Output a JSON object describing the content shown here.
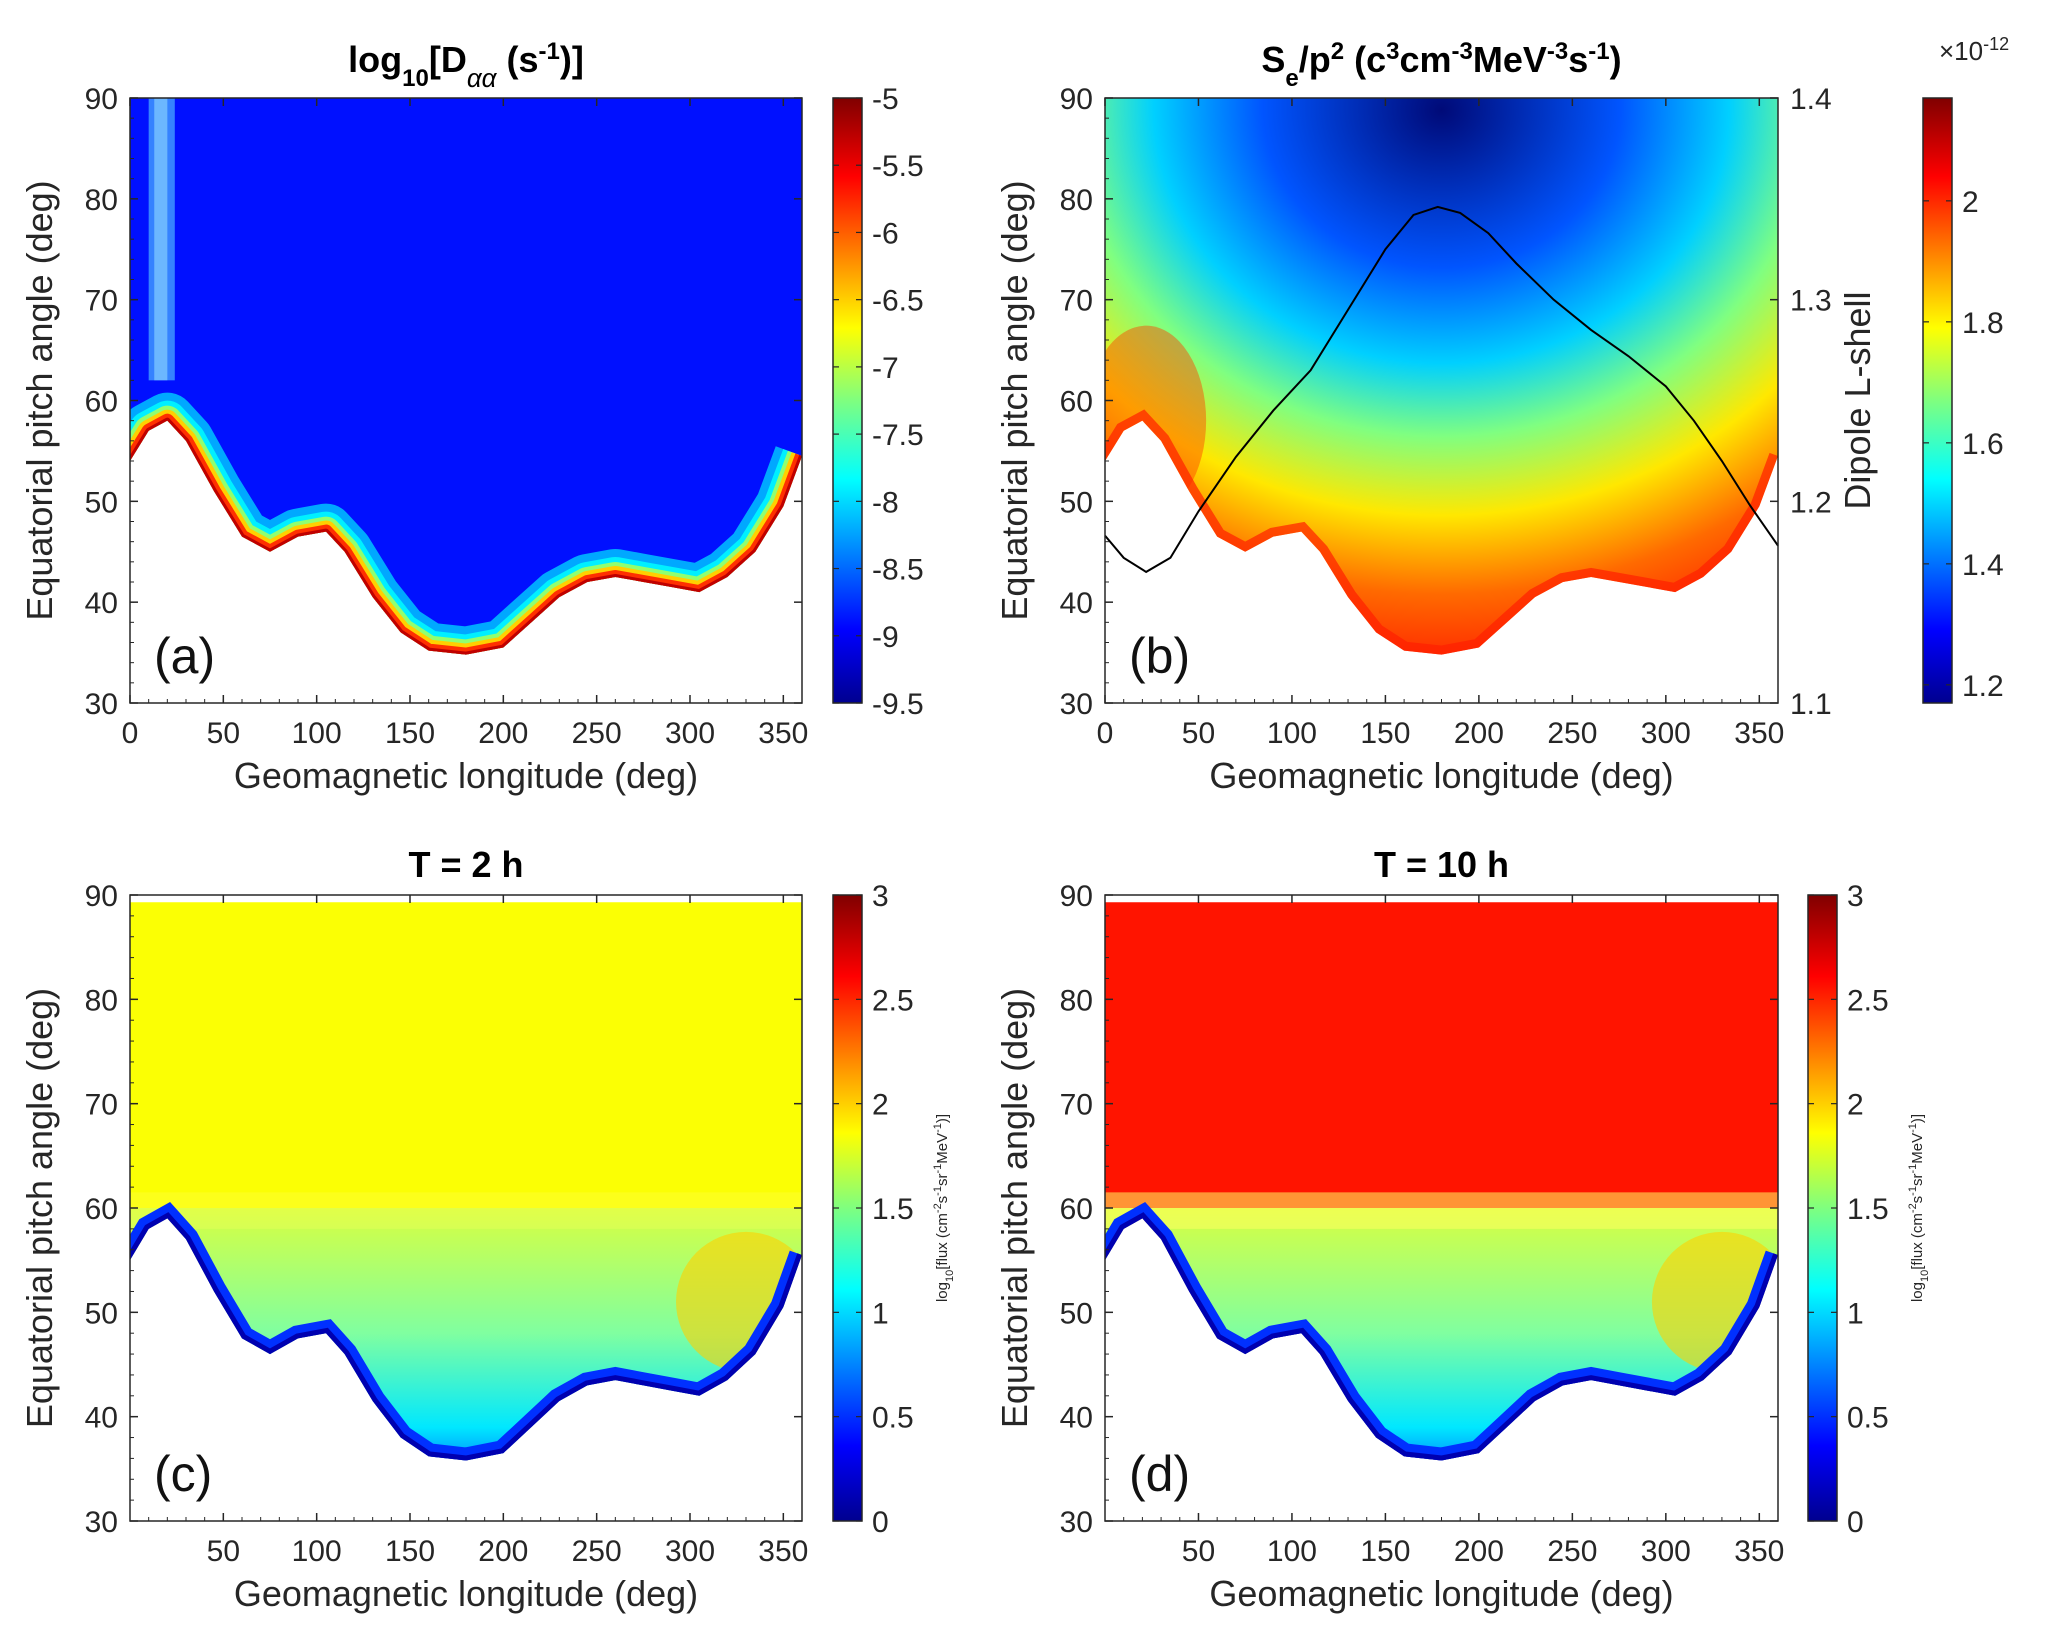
{
  "chart_data": [
    {
      "panel": "(a)",
      "type": "heatmap",
      "title": "log10[Dαα (s-1)]",
      "title_main": "log",
      "title_sub": "10",
      "title_rest": "[D",
      "title_sym": "αα",
      "title_unit": " (s",
      "title_exp": "-1",
      "title_close": ")]",
      "xlabel": "Geomagnetic longitude (deg)",
      "ylabel": "Equatorial pitch angle (deg)",
      "xlim": [
        0,
        360
      ],
      "ylim": [
        30,
        90
      ],
      "xticks": [
        "0",
        "50",
        "100",
        "150",
        "200",
        "250",
        "300",
        "350"
      ],
      "yticks": [
        "30",
        "40",
        "50",
        "60",
        "70",
        "80",
        "90"
      ],
      "colorbar": {
        "range": [
          -9.5,
          -5
        ],
        "ticks": [
          "-5",
          "-5.5",
          "-6",
          "-6.5",
          "-7",
          "-7.5",
          "-8",
          "-8.5",
          "-9",
          "-9.5"
        ],
        "colormap": "jet"
      },
      "loss_cone_boundary": {
        "longitude": [
          0,
          10,
          20,
          30,
          45,
          60,
          75,
          90,
          105,
          115,
          130,
          145,
          160,
          180,
          200,
          215,
          230,
          245,
          260,
          275,
          290,
          305,
          320,
          335,
          350,
          360
        ],
        "pitch_angle": [
          54,
          57,
          58,
          56,
          51,
          46.5,
          45,
          46.5,
          47,
          45,
          40.5,
          37,
          35.2,
          34.8,
          35.5,
          38,
          40.5,
          42,
          42.5,
          42,
          41.5,
          41,
          42.5,
          45,
          49.5,
          54.5
        ]
      }
    },
    {
      "panel": "(b)",
      "type": "heatmap",
      "title_main": "S",
      "title_sub": "e",
      "title_mid": "/p",
      "title_sup": "2",
      "title_rest1": " (c",
      "title_sup2": "3",
      "title_rest2": "cm",
      "title_sup3": "-3",
      "title_rest3": "MeV",
      "title_sup4": "-3",
      "title_rest4": "s",
      "title_sup5": "-1",
      "title_rest5": ")",
      "xlabel": "Geomagnetic longitude (deg)",
      "ylabel": "Equatorial pitch angle (deg)",
      "y2label": "Dipole L-shell",
      "xlim": [
        0,
        360
      ],
      "ylim": [
        30,
        90
      ],
      "y2lim": [
        1.1,
        1.4
      ],
      "xticks": [
        "0",
        "50",
        "100",
        "150",
        "200",
        "250",
        "300",
        "350"
      ],
      "yticks": [
        "30",
        "40",
        "50",
        "60",
        "70",
        "80",
        "90"
      ],
      "y2ticks": [
        "1.1",
        "1.2",
        "1.3",
        "1.4"
      ],
      "colorbar": {
        "range": [
          1.17,
          2.17
        ],
        "ticks": [
          "1.2",
          "1.4",
          "1.6",
          "1.8",
          "2"
        ],
        "exponent_base": "×10",
        "exponent": "-12",
        "colormap": "jet"
      },
      "lshell_curve": {
        "longitude": [
          0,
          10,
          22,
          35,
          50,
          70,
          90,
          110,
          130,
          150,
          165,
          178,
          190,
          205,
          220,
          240,
          260,
          280,
          300,
          315,
          330,
          345,
          360
        ],
        "lshell": [
          1.183,
          1.172,
          1.165,
          1.172,
          1.195,
          1.222,
          1.245,
          1.265,
          1.295,
          1.325,
          1.342,
          1.346,
          1.343,
          1.333,
          1.318,
          1.3,
          1.285,
          1.272,
          1.257,
          1.24,
          1.22,
          1.198,
          1.178
        ]
      }
    },
    {
      "panel": "(c)",
      "type": "heatmap",
      "title": "T = 2 h",
      "xlabel": "Geomagnetic longitude (deg)",
      "ylabel": "Equatorial pitch angle (deg)",
      "xlim": [
        0,
        360
      ],
      "ylim": [
        30,
        90
      ],
      "xticks": [
        "50",
        "100",
        "150",
        "200",
        "250",
        "300",
        "350"
      ],
      "yticks": [
        "30",
        "40",
        "50",
        "60",
        "70",
        "80",
        "90"
      ],
      "colorbar": {
        "range": [
          0,
          3
        ],
        "ticks": [
          "3",
          "2.5",
          "2",
          "1.5",
          "1",
          "0.5",
          "0"
        ],
        "colormap": "jet"
      },
      "colorbar_label_main": "log",
      "colorbar_label_sub": "10",
      "colorbar_label_a": "[flux (cm",
      "colorbar_label_e1": "-2",
      "colorbar_label_b": "s",
      "colorbar_label_e2": "-1",
      "colorbar_label_c": "sr",
      "colorbar_label_e3": "-1",
      "colorbar_label_d": "MeV",
      "colorbar_label_e4": "-1",
      "colorbar_label_f": ")]",
      "upper_level": 1.85,
      "lower_level": 1.3
    },
    {
      "panel": "(d)",
      "type": "heatmap",
      "title": "T = 10 h",
      "xlabel": "Geomagnetic longitude (deg)",
      "ylabel": "Equatorial pitch angle (deg)",
      "xlim": [
        0,
        360
      ],
      "ylim": [
        30,
        90
      ],
      "xticks": [
        "50",
        "100",
        "150",
        "200",
        "250",
        "300",
        "350"
      ],
      "yticks": [
        "30",
        "40",
        "50",
        "60",
        "70",
        "80",
        "90"
      ],
      "colorbar": {
        "range": [
          0,
          3
        ],
        "ticks": [
          "3",
          "2.5",
          "2",
          "1.5",
          "1",
          "0.5",
          "0"
        ],
        "colormap": "jet"
      },
      "colorbar_label_main": "log",
      "colorbar_label_sub": "10",
      "colorbar_label_a": "[flux (cm",
      "colorbar_label_e1": "-2",
      "colorbar_label_b": "s",
      "colorbar_label_e2": "-1",
      "colorbar_label_c": "sr",
      "colorbar_label_e3": "-1",
      "colorbar_label_d": "MeV",
      "colorbar_label_e4": "-1",
      "colorbar_label_f": ")]",
      "upper_level": 2.55,
      "lower_level": 1.5
    }
  ]
}
